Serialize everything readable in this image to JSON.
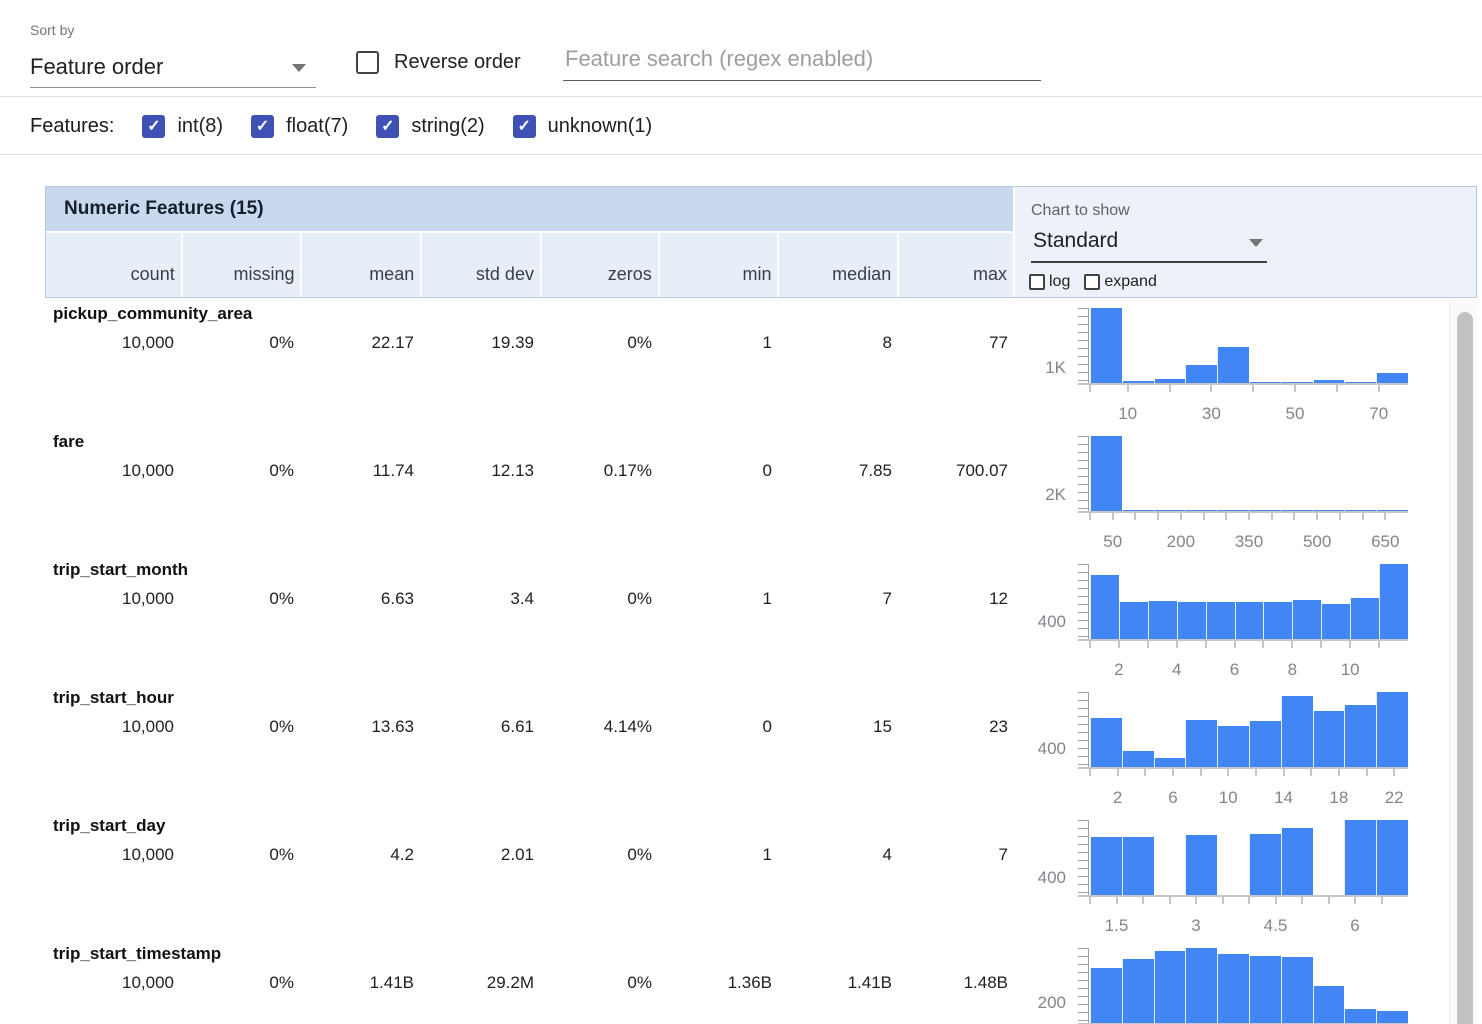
{
  "toolbar": {
    "sort_by_label": "Sort by",
    "sort_by_value": "Feature order",
    "reverse_order_label": "Reverse order",
    "search_placeholder": "Feature search (regex enabled)"
  },
  "features_filter": {
    "label": "Features:",
    "options": [
      {
        "label": "int(8)",
        "checked": true
      },
      {
        "label": "float(7)",
        "checked": true
      },
      {
        "label": "string(2)",
        "checked": true
      },
      {
        "label": "unknown(1)",
        "checked": true
      }
    ]
  },
  "table": {
    "title": "Numeric Features (15)",
    "columns": [
      "count",
      "missing",
      "mean",
      "std dev",
      "zeros",
      "min",
      "median",
      "max"
    ],
    "chart_controls": {
      "label": "Chart to show",
      "value": "Standard",
      "log_label": "log",
      "expand_label": "expand",
      "log_checked": false,
      "expand_checked": false
    },
    "rows": [
      {
        "name": "pickup_community_area",
        "count": "10,000",
        "missing": "0%",
        "mean": "22.17",
        "std_dev": "19.39",
        "zeros": "0%",
        "min": "1",
        "median": "8",
        "max": "77"
      },
      {
        "name": "fare",
        "count": "10,000",
        "missing": "0%",
        "mean": "11.74",
        "std_dev": "12.13",
        "zeros": "0.17%",
        "min": "0",
        "median": "7.85",
        "max": "700.07"
      },
      {
        "name": "trip_start_month",
        "count": "10,000",
        "missing": "0%",
        "mean": "6.63",
        "std_dev": "3.4",
        "zeros": "0%",
        "min": "1",
        "median": "7",
        "max": "12"
      },
      {
        "name": "trip_start_hour",
        "count": "10,000",
        "missing": "0%",
        "mean": "13.63",
        "std_dev": "6.61",
        "zeros": "4.14%",
        "min": "0",
        "median": "15",
        "max": "23"
      },
      {
        "name": "trip_start_day",
        "count": "10,000",
        "missing": "0%",
        "mean": "4.2",
        "std_dev": "2.01",
        "zeros": "0%",
        "min": "1",
        "median": "4",
        "max": "7"
      },
      {
        "name": "trip_start_timestamp",
        "count": "10,000",
        "missing": "0%",
        "mean": "1.41B",
        "std_dev": "29.2M",
        "zeros": "0%",
        "min": "1.36B",
        "median": "1.41B",
        "max": "1.48B"
      }
    ]
  },
  "chart_data": [
    {
      "type": "bar",
      "feature": "pickup_community_area",
      "x_range": [
        1,
        77
      ],
      "bin_counts": [
        4550,
        150,
        220,
        1100,
        2180,
        60,
        40,
        180,
        40,
        620
      ],
      "y_axis": {
        "label": "1K",
        "value": 1000
      },
      "x_ticks": [
        1,
        10,
        20,
        30,
        40,
        50,
        60,
        70
      ],
      "x_tick_labels": [
        {
          "text": "10",
          "value": 10
        },
        {
          "text": "30",
          "value": 30
        },
        {
          "text": "50",
          "value": 50
        },
        {
          "text": "70",
          "value": 70
        }
      ]
    },
    {
      "type": "bar",
      "feature": "fare",
      "x_range": [
        0,
        700
      ],
      "bin_counts": [
        8900,
        70,
        25,
        10,
        5,
        3,
        2,
        1,
        1,
        2
      ],
      "y_axis": {
        "label": "2K",
        "value": 2000
      },
      "x_ticks": [
        0,
        50,
        100,
        150,
        200,
        250,
        300,
        350,
        400,
        450,
        500,
        550,
        600,
        650
      ],
      "x_tick_labels": [
        {
          "text": "50",
          "value": 50
        },
        {
          "text": "200",
          "value": 200
        },
        {
          "text": "350",
          "value": 350
        },
        {
          "text": "500",
          "value": 500
        },
        {
          "text": "650",
          "value": 650
        }
      ]
    },
    {
      "type": "bar",
      "feature": "trip_start_month",
      "x_range": [
        1,
        12
      ],
      "bin_counts": [
        1400,
        800,
        840,
        820,
        800,
        800,
        820,
        850,
        770,
        900,
        1640
      ],
      "y_axis": {
        "label": "400",
        "value": 400
      },
      "x_ticks": [
        1,
        2,
        3,
        4,
        5,
        6,
        7,
        8,
        9,
        10,
        11
      ],
      "x_tick_labels": [
        {
          "text": "2",
          "value": 2
        },
        {
          "text": "4",
          "value": 4
        },
        {
          "text": "6",
          "value": 6
        },
        {
          "text": "8",
          "value": 8
        },
        {
          "text": "10",
          "value": 10
        }
      ]
    },
    {
      "type": "bar",
      "feature": "trip_start_hour",
      "x_range": [
        0,
        23
      ],
      "bin_counts": [
        1040,
        345,
        190,
        990,
        870,
        975,
        1505,
        1195,
        1305,
        1590
      ],
      "y_axis": {
        "label": "400",
        "value": 400
      },
      "x_ticks": [
        0,
        2,
        4,
        6,
        8,
        10,
        12,
        14,
        16,
        18,
        20,
        22
      ],
      "x_tick_labels": [
        {
          "text": "2",
          "value": 2
        },
        {
          "text": "6",
          "value": 6
        },
        {
          "text": "10",
          "value": 10
        },
        {
          "text": "14",
          "value": 14
        },
        {
          "text": "18",
          "value": 18
        },
        {
          "text": "22",
          "value": 22
        }
      ]
    },
    {
      "type": "bar",
      "feature": "trip_start_day",
      "x_range": [
        1,
        7
      ],
      "bin_counts": [
        1270,
        1270,
        0,
        1325,
        0,
        1350,
        1470,
        0,
        1655,
        1655
      ],
      "y_axis": {
        "label": "400",
        "value": 400
      },
      "x_ticks": [
        1,
        1.5,
        2,
        2.5,
        3,
        3.5,
        4,
        4.5,
        5,
        5.5,
        6,
        6.5
      ],
      "x_tick_labels": [
        {
          "text": "1.5",
          "value": 1.5
        },
        {
          "text": "3",
          "value": 3
        },
        {
          "text": "4.5",
          "value": 4.5
        },
        {
          "text": "6",
          "value": 6
        }
      ]
    },
    {
      "type": "bar",
      "feature": "trip_start_timestamp",
      "x_range": [
        1360000000,
        1480000000
      ],
      "bin_counts": [
        540,
        620,
        700,
        730,
        670,
        650,
        640,
        360,
        140,
        120
      ],
      "y_axis": {
        "label": "200",
        "value": 200
      },
      "x_ticks": [],
      "x_tick_labels": []
    }
  ],
  "colors": {
    "checkbox_indigo": "#3f51b5",
    "histogram_bar_blue": "#4285f4",
    "table_title_blue": "#c7d8ef",
    "column_header_blue": "#e8eef8",
    "chart_panel_blue": "#edf1f9"
  }
}
